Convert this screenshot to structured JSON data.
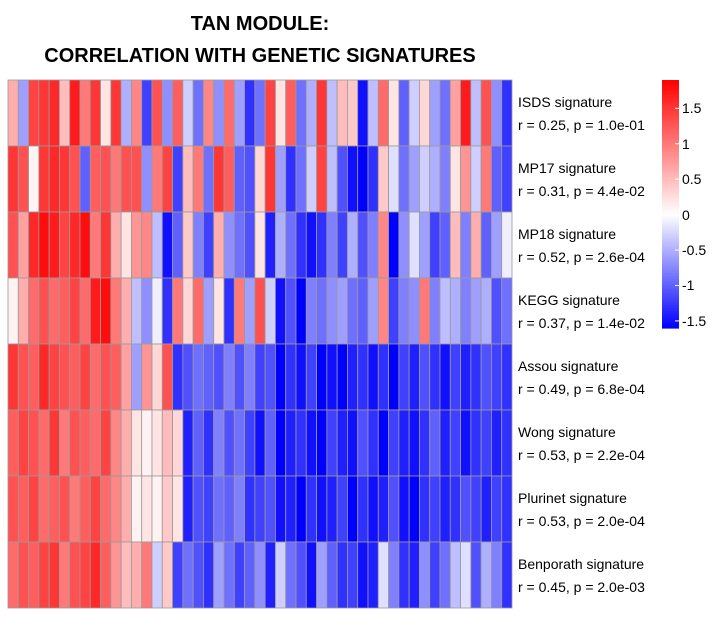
{
  "title": {
    "line1": "TAN MODULE:",
    "line2": "CORRELATION WITH GENETIC SIGNATURES"
  },
  "chart_data": {
    "type": "heatmap",
    "rows": [
      {
        "name": "ISDS signature",
        "stats": "r = 0.25, p = 1.0e-01",
        "values": [
          0.6,
          -0.6,
          1.4,
          1.5,
          1.6,
          0.5,
          1.7,
          1.0,
          1.5,
          0.2,
          1.5,
          -0.5,
          0.9,
          -1.2,
          1.3,
          -0.7,
          1.2,
          -0.3,
          -0.9,
          0.9,
          -0.7,
          1.1,
          -0.6,
          -1.3,
          -0.9,
          1.4,
          0.2,
          1.2,
          -0.9,
          -0.5,
          1.5,
          -0.4,
          0.5,
          0.4,
          -1.5,
          -0.4,
          1.1,
          0.2,
          -1.0,
          -0.3,
          0.3,
          -0.6,
          -0.9,
          0.7,
          1.7,
          -0.4,
          1.3,
          -0.7,
          -1.3
        ]
      },
      {
        "name": "MP17 signature",
        "stats": "r = 0.31, p = 4.4e-02",
        "values": [
          1.5,
          1.3,
          0.1,
          1.5,
          1.6,
          1.5,
          1.3,
          -1.0,
          1.2,
          1.3,
          1.0,
          1.3,
          1.3,
          -0.7,
          1.0,
          1.4,
          -1.2,
          0.5,
          1.0,
          -0.9,
          1.5,
          1.2,
          -1.0,
          -1.1,
          0.3,
          1.5,
          -0.6,
          -1.3,
          -0.9,
          -0.3,
          1.4,
          -0.4,
          -1.1,
          -1.5,
          -1.6,
          -1.3,
          0.4,
          -0.2,
          -0.9,
          -0.6,
          -0.3,
          -0.5,
          -0.8,
          0.2,
          0.8,
          -0.3,
          1.0,
          -1.0,
          -1.2
        ]
      },
      {
        "name": "MP18 signature",
        "stats": "r = 0.52, p = 2.6e-04",
        "values": [
          1.3,
          0.7,
          1.6,
          1.8,
          1.7,
          1.4,
          1.6,
          1.8,
          1.0,
          1.5,
          0.6,
          0.2,
          0.8,
          0.9,
          -0.4,
          -1.5,
          -1.0,
          0.4,
          -0.8,
          -1.2,
          0.6,
          -0.7,
          -0.9,
          -1.1,
          0.2,
          -1.4,
          -0.5,
          -0.9,
          -1.3,
          -1.5,
          -1.3,
          -0.8,
          -1.2,
          -0.5,
          -1.1,
          -0.8,
          0.9,
          -1.6,
          -0.7,
          -0.2,
          -0.6,
          -1.2,
          -1.0,
          0.5,
          -0.8,
          0.6,
          -1.0,
          -0.6,
          -0.1
        ]
      },
      {
        "name": "KEGG signature",
        "stats": "r = 0.37, p = 1.4e-02",
        "values": [
          0.1,
          0.6,
          1.1,
          1.3,
          1.1,
          1.2,
          1.4,
          1.1,
          1.7,
          1.8,
          1.0,
          0.6,
          -0.4,
          -0.7,
          -0.1,
          -1.3,
          1.0,
          0.3,
          1.1,
          -0.6,
          0.2,
          -1.3,
          1.0,
          -0.6,
          1.3,
          -0.3,
          -1.5,
          -1.1,
          -1.7,
          -0.8,
          -0.9,
          -0.7,
          -0.6,
          -0.9,
          -1.0,
          -0.6,
          0.9,
          -1.2,
          -0.8,
          -0.7,
          1.0,
          -0.8,
          -0.4,
          -0.5,
          -0.8,
          -0.6,
          -0.5,
          -1.1,
          -0.9
        ]
      },
      {
        "name": "Assou signature",
        "stats": "r = 0.49, p = 6.8e-04",
        "values": [
          1.5,
          1.3,
          1.2,
          1.6,
          1.4,
          1.3,
          1.2,
          1.4,
          1.1,
          1.3,
          1.2,
          0.7,
          -0.6,
          0.8,
          0.3,
          1.3,
          -1.3,
          -1.1,
          -0.9,
          -1.0,
          -1.1,
          -0.8,
          -1.1,
          -0.8,
          -1.2,
          -1.1,
          -1.6,
          -1.3,
          -1.5,
          -1.2,
          -1.6,
          -1.5,
          -1.6,
          -1.4,
          -1.3,
          -1.5,
          -1.3,
          -1.6,
          -1.2,
          -1.4,
          -1.1,
          -1.3,
          -1.5,
          -1.2,
          -1.4,
          -1.3,
          -1.1,
          -1.2,
          -1.3
        ]
      },
      {
        "name": "Wong signature",
        "stats": "r = 0.53, p = 2.2e-04",
        "values": [
          1.2,
          1.4,
          1.3,
          1.1,
          1.5,
          1.0,
          1.3,
          1.2,
          1.1,
          1.4,
          0.9,
          0.6,
          0.2,
          0.1,
          0.2,
          0.5,
          0.3,
          -1.4,
          -1.0,
          -1.3,
          -0.8,
          -1.1,
          -0.9,
          -1.2,
          -1.5,
          -1.0,
          -1.6,
          -1.4,
          -1.3,
          -1.5,
          -1.6,
          -1.2,
          -1.4,
          -1.5,
          -1.1,
          -1.3,
          -1.6,
          -1.2,
          -1.4,
          -1.5,
          -1.3,
          -1.0,
          -1.4,
          -1.2,
          -1.5,
          -1.3,
          -1.2,
          -1.4,
          -1.3
        ]
      },
      {
        "name": "Plurinet signature",
        "stats": "r = 0.53, p = 2.0e-04",
        "values": [
          1.3,
          1.2,
          1.4,
          1.1,
          1.2,
          1.3,
          1.0,
          1.2,
          1.4,
          1.1,
          0.9,
          0.6,
          0.1,
          0.2,
          0.1,
          0.4,
          0.2,
          -1.4,
          -1.1,
          -1.2,
          -0.9,
          -1.0,
          -0.8,
          -1.3,
          -1.2,
          -1.1,
          -1.5,
          -1.4,
          -1.6,
          -1.3,
          -1.5,
          -1.4,
          -1.2,
          -1.6,
          -1.3,
          -1.5,
          -1.4,
          -1.1,
          -1.5,
          -1.6,
          -1.3,
          -1.2,
          -1.4,
          -1.3,
          -1.1,
          -1.2,
          -1.4,
          -1.2,
          -1.3
        ]
      },
      {
        "name": "Benporath signature",
        "stats": "r = 0.45, p = 2.0e-03",
        "values": [
          1.1,
          1.3,
          1.2,
          1.4,
          1.5,
          1.0,
          1.3,
          1.4,
          1.6,
          1.2,
          0.8,
          0.5,
          0.6,
          1.0,
          -0.3,
          0.4,
          -1.2,
          -0.9,
          -1.1,
          -1.3,
          -0.6,
          -0.9,
          -1.2,
          -1.0,
          -0.7,
          -1.4,
          -0.3,
          -0.9,
          -1.1,
          -1.5,
          -0.6,
          -1.0,
          -1.3,
          -1.2,
          -1.5,
          -1.4,
          -0.2,
          -0.8,
          -1.3,
          -1.4,
          -0.7,
          -1.2,
          -0.9,
          -0.4,
          -0.2,
          -1.1,
          -0.5,
          -0.8,
          -1.3
        ]
      }
    ],
    "color_scale": {
      "min": -1.6,
      "max": 1.9,
      "low": "#0000FF",
      "mid": "#FFFFFF",
      "high": "#FF0000"
    },
    "legend_ticks": [
      "1.5",
      "1",
      "0.5",
      "0",
      "-0.5",
      "-1",
      "-1.5"
    ],
    "legend_tick_values": [
      1.5,
      1,
      0.5,
      0,
      -0.5,
      -1,
      -1.5
    ],
    "cell_border_color": "#9a9a9a"
  }
}
